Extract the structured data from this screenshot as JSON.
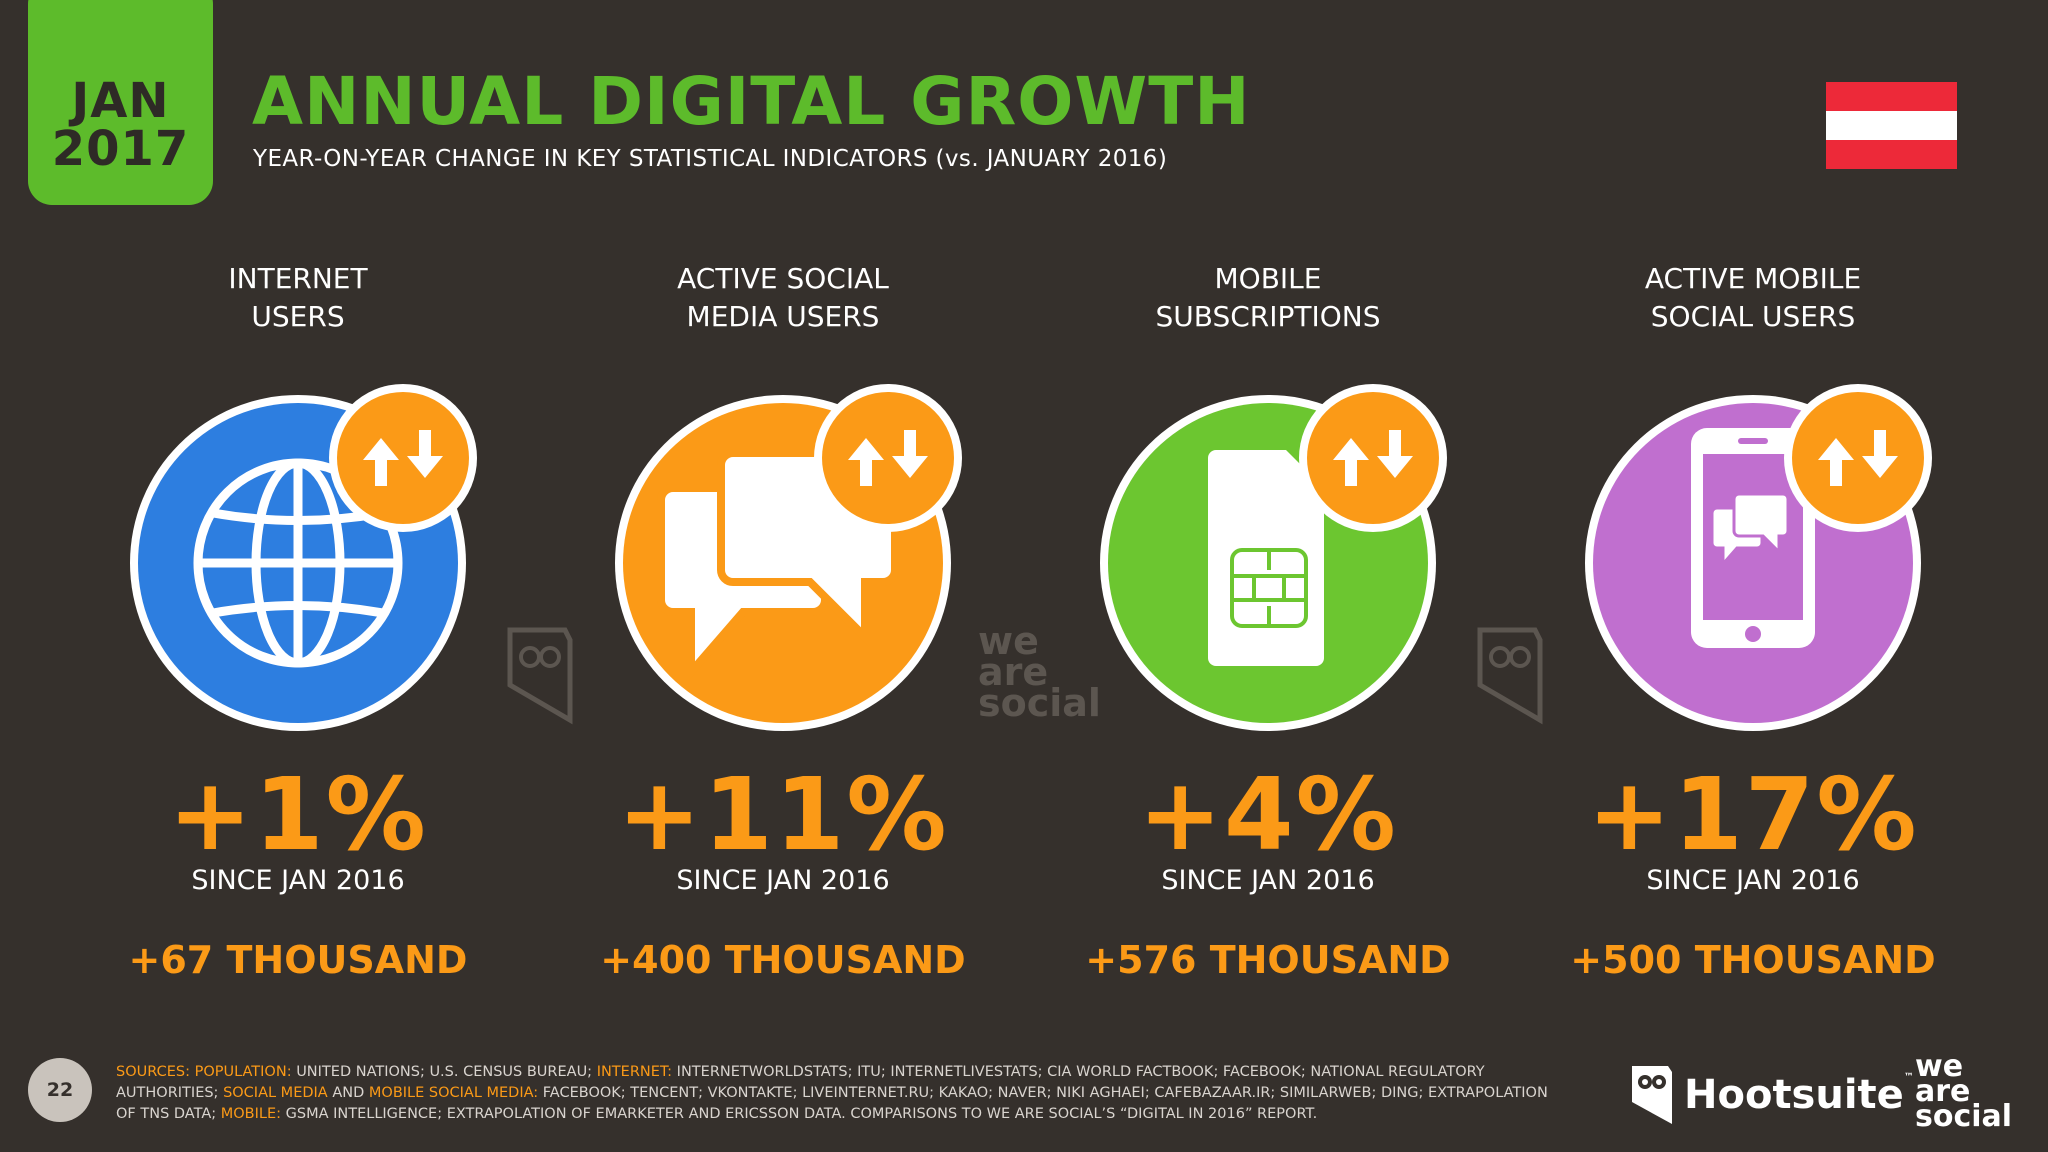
{
  "header": {
    "date_month": "JAN",
    "date_year": "2017",
    "title": "ANNUAL DIGITAL GROWTH",
    "subtitle": "YEAR-ON-YEAR CHANGE IN KEY STATISTICAL INDICATORS (vs. JANUARY 2016)"
  },
  "flag": {
    "name": "austria-flag",
    "colors": [
      "#ed2939",
      "#ffffff",
      "#ed2939"
    ]
  },
  "colors": {
    "green": "#5dbb2b",
    "orange": "#fb9a17",
    "blue": "#2d7ee0",
    "purple": "#c06fcf",
    "background": "#35302c"
  },
  "indicators": [
    {
      "label_line1": "INTERNET",
      "label_line2": "USERS",
      "icon": "globe-icon",
      "color": "#2d7ee0",
      "percent": "+1%",
      "since": "SINCE JAN 2016",
      "delta": "+67 THOUSAND"
    },
    {
      "label_line1": "ACTIVE SOCIAL",
      "label_line2": "MEDIA USERS",
      "icon": "chat-bubbles-icon",
      "color": "#fb9a17",
      "percent": "+11%",
      "since": "SINCE JAN 2016",
      "delta": "+400 THOUSAND"
    },
    {
      "label_line1": "MOBILE",
      "label_line2": "SUBSCRIPTIONS",
      "icon": "sim-card-icon",
      "color": "#6cc630",
      "percent": "+4%",
      "since": "SINCE JAN 2016",
      "delta": "+576 THOUSAND"
    },
    {
      "label_line1": "ACTIVE MOBILE",
      "label_line2": "SOCIAL USERS",
      "icon": "mobile-chat-icon",
      "color": "#c06fcf",
      "percent": "+17%",
      "since": "SINCE JAN 2016",
      "delta": "+500 THOUSAND"
    }
  ],
  "watermark": {
    "line1": "we",
    "line2": "are",
    "line3": "social"
  },
  "footer": {
    "page_number": "22",
    "sources": [
      {
        "text": "SOURCES: ",
        "hl": true
      },
      {
        "text": "POPULATION: ",
        "hl": true
      },
      {
        "text": "UNITED NATIONS; U.S. CENSUS BUREAU; ",
        "hl": false
      },
      {
        "text": "INTERNET: ",
        "hl": true
      },
      {
        "text": "INTERNETWORLDSTATS; ITU; INTERNETLIVESTATS; CIA WORLD FACTBOOK; FACEBOOK; NATIONAL REGULATORY AUTHORITIES; ",
        "hl": false
      },
      {
        "text": "SOCIAL MEDIA ",
        "hl": true
      },
      {
        "text": "AND ",
        "hl": false
      },
      {
        "text": "MOBILE SOCIAL MEDIA: ",
        "hl": true
      },
      {
        "text": "FACEBOOK; TENCENT; VKONTAKTE; LIVEINTERNET.RU; KAKAO; NAVER; NIKI AGHAEI; CAFEBAZAAR.IR; SIMILARWEB; DING; EXTRAPOLATION OF TNS DATA; ",
        "hl": false
      },
      {
        "text": "MOBILE: ",
        "hl": true
      },
      {
        "text": "GSMA INTELLIGENCE; EXTRAPOLATION OF EMARKETER AND ERICSSON DATA. COMPARISONS TO WE ARE SOCIAL’S “DIGITAL IN 2016” REPORT.",
        "hl": false
      }
    ],
    "hootsuite": "Hootsuite",
    "tm": "™",
    "was_line1": "we",
    "was_line2": "are",
    "was_line3": "social"
  }
}
